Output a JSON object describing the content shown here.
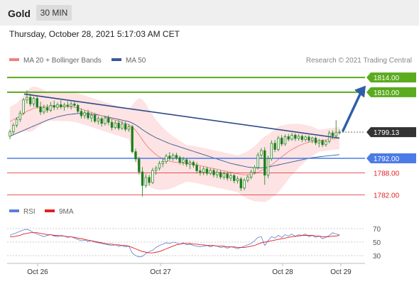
{
  "header": {
    "title": "Gold",
    "timeframe": "30 MIN"
  },
  "timestamp": "Thursday, October 28, 2021 5:17:03 AM CET",
  "legend": {
    "ma20": {
      "label": "MA 20 + Bollinger Bands",
      "color": "#f08080"
    },
    "ma50": {
      "label": "MA 50",
      "color": "#3a5a9a"
    }
  },
  "rsi_legend": {
    "rsi": {
      "label": "RSI",
      "color": "#5b7fd6"
    },
    "ma9": {
      "label": "9MA",
      "color": "#e02020"
    }
  },
  "credit": "Research © 2021 Trading Central",
  "chart_data": {
    "type": "candlestick",
    "x_labels": [
      "Oct 26",
      "Oct 27",
      "Oct 28",
      "Oct 29"
    ],
    "ylim": [
      1780,
      1818
    ],
    "last_price": {
      "value": 1799.13,
      "label": "1799.13"
    },
    "levels": [
      {
        "value": 1814.0,
        "label": "1814.00",
        "kind": "resistance",
        "color": "#5aab1e"
      },
      {
        "value": 1810.0,
        "label": "1810.00",
        "kind": "resistance",
        "color": "#5aab1e"
      },
      {
        "value": 1792.0,
        "label": "1792.00",
        "kind": "pivot",
        "color": "#4b7be6"
      },
      {
        "value": 1788.0,
        "label": "1788.00",
        "kind": "support",
        "color": "#e02020"
      },
      {
        "value": 1782.0,
        "label": "1782.00",
        "kind": "support",
        "color": "#e02020"
      }
    ],
    "trendline": {
      "from": {
        "index": 0,
        "value": 1809.5
      },
      "to": {
        "index": 97,
        "value": 1797.5
      },
      "color": "#2f4a8a"
    },
    "arrow": {
      "from": 1799.13,
      "to": 1811.0,
      "color": "#2d5fa8"
    },
    "candles_ohlc": [
      [
        1798.0,
        1799.8,
        1797.2,
        1799.2
      ],
      [
        1799.2,
        1801.6,
        1798.5,
        1801.0
      ],
      [
        1801.0,
        1803.2,
        1800.4,
        1802.6
      ],
      [
        1802.6,
        1805.0,
        1801.9,
        1804.3
      ],
      [
        1804.3,
        1808.4,
        1803.8,
        1807.9
      ],
      [
        1807.9,
        1810.5,
        1806.9,
        1808.6
      ],
      [
        1808.6,
        1809.6,
        1806.1,
        1806.8
      ],
      [
        1806.8,
        1808.8,
        1806.0,
        1808.3
      ],
      [
        1808.3,
        1808.9,
        1805.5,
        1806.0
      ],
      [
        1806.0,
        1807.4,
        1803.8,
        1804.6
      ],
      [
        1804.6,
        1806.6,
        1804.0,
        1805.8
      ],
      [
        1805.8,
        1806.7,
        1804.4,
        1805.1
      ],
      [
        1805.1,
        1807.3,
        1804.6,
        1806.4
      ],
      [
        1806.4,
        1807.7,
        1805.1,
        1805.9
      ],
      [
        1805.9,
        1807.2,
        1805.2,
        1806.6
      ],
      [
        1806.6,
        1807.8,
        1805.4,
        1806.0
      ],
      [
        1806.0,
        1807.1,
        1805.0,
        1806.5
      ],
      [
        1806.5,
        1807.5,
        1805.6,
        1806.2
      ],
      [
        1806.2,
        1807.4,
        1805.3,
        1806.8
      ],
      [
        1806.8,
        1807.6,
        1805.9,
        1806.4
      ],
      [
        1806.4,
        1806.9,
        1804.3,
        1804.8
      ],
      [
        1804.8,
        1805.6,
        1802.9,
        1803.6
      ],
      [
        1803.6,
        1805.1,
        1802.8,
        1804.4
      ],
      [
        1804.4,
        1805.2,
        1802.5,
        1803.0
      ],
      [
        1803.0,
        1804.4,
        1801.9,
        1803.7
      ],
      [
        1803.7,
        1804.3,
        1801.6,
        1802.1
      ],
      [
        1802.1,
        1803.5,
        1801.2,
        1802.8
      ],
      [
        1802.8,
        1803.3,
        1800.6,
        1801.5
      ],
      [
        1801.5,
        1803.6,
        1800.9,
        1803.0
      ],
      [
        1803.0,
        1803.7,
        1801.0,
        1801.8
      ],
      [
        1801.8,
        1802.6,
        1799.6,
        1800.4
      ],
      [
        1800.4,
        1802.3,
        1799.9,
        1801.6
      ],
      [
        1801.6,
        1802.4,
        1799.6,
        1800.2
      ],
      [
        1800.2,
        1802.1,
        1799.7,
        1801.3
      ],
      [
        1801.3,
        1802.0,
        1799.3,
        1799.9
      ],
      [
        1799.9,
        1801.3,
        1799.2,
        1800.6
      ],
      [
        1800.6,
        1801.1,
        1793.3,
        1793.8
      ],
      [
        1793.8,
        1794.6,
        1791.0,
        1791.8
      ],
      [
        1791.8,
        1792.4,
        1787.6,
        1788.3
      ],
      [
        1788.3,
        1789.6,
        1781.6,
        1784.6
      ],
      [
        1784.6,
        1787.7,
        1783.9,
        1786.8
      ],
      [
        1786.8,
        1787.5,
        1784.6,
        1785.4
      ],
      [
        1785.4,
        1789.4,
        1785.0,
        1788.7
      ],
      [
        1788.7,
        1789.9,
        1787.5,
        1789.3
      ],
      [
        1789.3,
        1791.3,
        1788.7,
        1790.6
      ],
      [
        1790.6,
        1792.0,
        1789.6,
        1791.1
      ],
      [
        1791.1,
        1793.2,
        1790.5,
        1792.6
      ],
      [
        1792.6,
        1793.7,
        1791.4,
        1792.0
      ],
      [
        1792.0,
        1793.4,
        1791.3,
        1792.8
      ],
      [
        1792.8,
        1793.5,
        1791.6,
        1792.2
      ],
      [
        1792.2,
        1792.7,
        1790.3,
        1790.9
      ],
      [
        1790.9,
        1792.4,
        1790.1,
        1791.6
      ],
      [
        1791.6,
        1792.1,
        1789.7,
        1790.4
      ],
      [
        1790.4,
        1791.5,
        1789.1,
        1790.9
      ],
      [
        1790.9,
        1791.4,
        1789.4,
        1790.1
      ],
      [
        1790.1,
        1790.9,
        1787.9,
        1788.6
      ],
      [
        1788.6,
        1789.8,
        1787.3,
        1788.2
      ],
      [
        1788.2,
        1789.7,
        1787.4,
        1789.1
      ],
      [
        1789.1,
        1789.7,
        1787.3,
        1787.9
      ],
      [
        1787.9,
        1789.3,
        1787.4,
        1788.7
      ],
      [
        1788.7,
        1789.2,
        1786.8,
        1787.5
      ],
      [
        1787.5,
        1788.8,
        1786.6,
        1788.2
      ],
      [
        1788.2,
        1788.7,
        1786.3,
        1786.9
      ],
      [
        1786.9,
        1788.4,
        1786.2,
        1787.8
      ],
      [
        1787.8,
        1788.3,
        1785.9,
        1786.6
      ],
      [
        1786.6,
        1787.9,
        1785.8,
        1787.3
      ],
      [
        1787.3,
        1787.8,
        1785.2,
        1785.9
      ],
      [
        1785.9,
        1787.1,
        1785.1,
        1786.4
      ],
      [
        1786.4,
        1786.9,
        1783.1,
        1783.9
      ],
      [
        1783.9,
        1786.6,
        1783.3,
        1786.0
      ],
      [
        1786.0,
        1787.5,
        1785.4,
        1786.9
      ],
      [
        1786.9,
        1788.9,
        1786.3,
        1788.2
      ],
      [
        1788.2,
        1790.1,
        1787.6,
        1789.5
      ],
      [
        1789.5,
        1793.6,
        1788.9,
        1792.9
      ],
      [
        1792.9,
        1794.8,
        1791.8,
        1794.1
      ],
      [
        1794.1,
        1795.0,
        1784.8,
        1787.4
      ],
      [
        1787.4,
        1792.7,
        1786.6,
        1791.9
      ],
      [
        1791.9,
        1796.9,
        1791.3,
        1796.1
      ],
      [
        1796.1,
        1797.0,
        1793.7,
        1794.4
      ],
      [
        1794.4,
        1798.1,
        1793.9,
        1797.5
      ],
      [
        1797.5,
        1798.3,
        1795.3,
        1795.9
      ],
      [
        1795.9,
        1798.5,
        1795.4,
        1797.9
      ],
      [
        1797.9,
        1798.6,
        1796.6,
        1797.2
      ],
      [
        1797.2,
        1798.9,
        1796.8,
        1798.3
      ],
      [
        1798.3,
        1798.8,
        1796.7,
        1797.4
      ],
      [
        1797.4,
        1798.6,
        1796.8,
        1798.0
      ],
      [
        1798.0,
        1798.5,
        1796.4,
        1797.1
      ],
      [
        1797.1,
        1798.2,
        1796.5,
        1797.8
      ],
      [
        1797.8,
        1798.3,
        1796.3,
        1796.9
      ],
      [
        1796.9,
        1797.9,
        1796.1,
        1797.5
      ],
      [
        1797.5,
        1797.9,
        1795.6,
        1796.2
      ],
      [
        1796.2,
        1797.3,
        1795.0,
        1796.8
      ],
      [
        1796.8,
        1797.2,
        1795.1,
        1795.7
      ],
      [
        1795.7,
        1797.0,
        1795.2,
        1796.6
      ],
      [
        1796.6,
        1799.5,
        1796.1,
        1798.9
      ],
      [
        1798.9,
        1799.6,
        1797.3,
        1798.1
      ],
      [
        1798.1,
        1802.4,
        1797.6,
        1799.1
      ],
      [
        1799.1,
        1799.9,
        1798.5,
        1799.13
      ]
    ],
    "ma20": [
      1802.0,
      1802.5,
      1803.0,
      1803.5,
      1804.2,
      1804.8,
      1805.2,
      1805.6,
      1805.9,
      1806.0,
      1806.1,
      1806.1,
      1806.2,
      1806.2,
      1806.2,
      1806.2,
      1806.1,
      1806.1,
      1806.0,
      1805.9,
      1805.7,
      1805.4,
      1805.1,
      1804.8,
      1804.5,
      1804.2,
      1803.9,
      1803.6,
      1803.3,
      1803.0,
      1802.7,
      1802.4,
      1802.1,
      1801.8,
      1801.5,
      1801.2,
      1800.5,
      1799.6,
      1798.4,
      1797.0,
      1795.8,
      1794.7,
      1793.8,
      1793.0,
      1792.4,
      1791.9,
      1791.5,
      1791.2,
      1791.0,
      1790.9,
      1790.8,
      1790.7,
      1790.6,
      1790.5,
      1790.4,
      1790.2,
      1790.0,
      1789.8,
      1789.6,
      1789.4,
      1789.2,
      1789.0,
      1788.8,
      1788.6,
      1788.4,
      1788.2,
      1788.0,
      1787.8,
      1787.6,
      1787.5,
      1787.5,
      1787.6,
      1787.8,
      1788.2,
      1788.7,
      1789.0,
      1789.5,
      1790.2,
      1790.9,
      1791.7,
      1792.4,
      1793.1,
      1793.8,
      1794.4,
      1794.9,
      1795.4,
      1795.8,
      1796.1,
      1796.4,
      1796.6,
      1796.7,
      1796.8,
      1796.9,
      1797.0,
      1797.2,
      1797.3,
      1797.4,
      1797.5
    ],
    "ma50": [
      1798.0,
      1798.4,
      1798.8,
      1799.2,
      1799.6,
      1800.0,
      1800.4,
      1800.8,
      1801.2,
      1801.6,
      1802.0,
      1802.4,
      1802.7,
      1803.0,
      1803.3,
      1803.5,
      1803.7,
      1803.9,
      1804.0,
      1804.1,
      1804.2,
      1804.2,
      1804.2,
      1804.1,
      1804.0,
      1803.9,
      1803.8,
      1803.6,
      1803.4,
      1803.2,
      1803.0,
      1802.8,
      1802.6,
      1802.4,
      1802.2,
      1802.0,
      1801.6,
      1801.1,
      1800.5,
      1799.8,
      1799.2,
      1798.6,
      1798.1,
      1797.6,
      1797.2,
      1796.8,
      1796.4,
      1796.0,
      1795.7,
      1795.4,
      1795.1,
      1794.8,
      1794.5,
      1794.2,
      1793.9,
      1793.6,
      1793.3,
      1793.0,
      1792.7,
      1792.4,
      1792.1,
      1791.8,
      1791.5,
      1791.2,
      1790.9,
      1790.6,
      1790.4,
      1790.2,
      1790.0,
      1789.8,
      1789.6,
      1789.5,
      1789.4,
      1789.4,
      1789.4,
      1789.5,
      1789.6,
      1789.8,
      1790.0,
      1790.2,
      1790.4,
      1790.6,
      1790.8,
      1791.0,
      1791.2,
      1791.4,
      1791.6,
      1791.8,
      1792.0,
      1792.2,
      1792.3,
      1792.4,
      1792.5,
      1792.6,
      1792.7,
      1792.8,
      1792.9,
      1793.0
    ],
    "bb_width": [
      4,
      4,
      4,
      4.5,
      5,
      5.5,
      6,
      6,
      5.5,
      5,
      4.5,
      4,
      4,
      4,
      4,
      4,
      4,
      4,
      4,
      4,
      4,
      4,
      4,
      4,
      4,
      4,
      4,
      4,
      4,
      4,
      4,
      4,
      4,
      4,
      4,
      4,
      6,
      8,
      10,
      11,
      11,
      10.5,
      10,
      9.5,
      9,
      8.5,
      8,
      7.5,
      7,
      6.5,
      6,
      5.5,
      5,
      5,
      5,
      5,
      5,
      5,
      5,
      5,
      5,
      5,
      5,
      5,
      5,
      5,
      5,
      5,
      5.5,
      6,
      6.5,
      7,
      7.5,
      8,
      8.5,
      9,
      9,
      9,
      9,
      9,
      8.5,
      8,
      7.5,
      7,
      6.5,
      6,
      5.5,
      5,
      4.5,
      4,
      3.5,
      3,
      3,
      3,
      3,
      3,
      3,
      3
    ],
    "rsi": {
      "levels": [
        70,
        50,
        30
      ],
      "rsi_values": [
        60,
        62,
        64,
        66,
        68,
        69,
        67,
        64,
        62,
        60,
        58,
        60,
        61,
        59,
        58,
        60,
        59,
        57,
        58,
        56,
        54,
        52,
        53,
        51,
        52,
        50,
        49,
        48,
        47,
        46,
        45,
        46,
        44,
        45,
        43,
        44,
        34,
        30,
        28,
        29,
        33,
        36,
        38,
        42,
        45,
        47,
        49,
        48,
        50,
        49,
        47,
        49,
        46,
        47,
        45,
        44,
        43,
        44,
        45,
        43,
        45,
        44,
        42,
        43,
        41,
        43,
        42,
        40,
        42,
        44,
        46,
        48,
        52,
        57,
        58,
        45,
        52,
        58,
        56,
        60,
        57,
        61,
        59,
        62,
        58,
        61,
        60,
        62,
        58,
        60,
        57,
        59,
        55,
        57,
        60,
        64,
        62,
        61
      ],
      "ma9_values": [
        58,
        58,
        59,
        60,
        62,
        63,
        64,
        64,
        64,
        63,
        62,
        61,
        61,
        60,
        60,
        59,
        59,
        58,
        58,
        57,
        56,
        55,
        54,
        53,
        52,
        51,
        50,
        49,
        48,
        47,
        47,
        46,
        46,
        45,
        45,
        44,
        42,
        40,
        38,
        36,
        35,
        34,
        34,
        35,
        36,
        38,
        40,
        42,
        44,
        46,
        47,
        48,
        48,
        48,
        47,
        47,
        46,
        46,
        45,
        45,
        45,
        44,
        44,
        44,
        43,
        43,
        43,
        42,
        42,
        42,
        43,
        44,
        45,
        47,
        49,
        50,
        51,
        52,
        53,
        54,
        55,
        56,
        57,
        58,
        59,
        59,
        60,
        60,
        60,
        60,
        59,
        59,
        58,
        58,
        58,
        59,
        59,
        60
      ]
    }
  }
}
